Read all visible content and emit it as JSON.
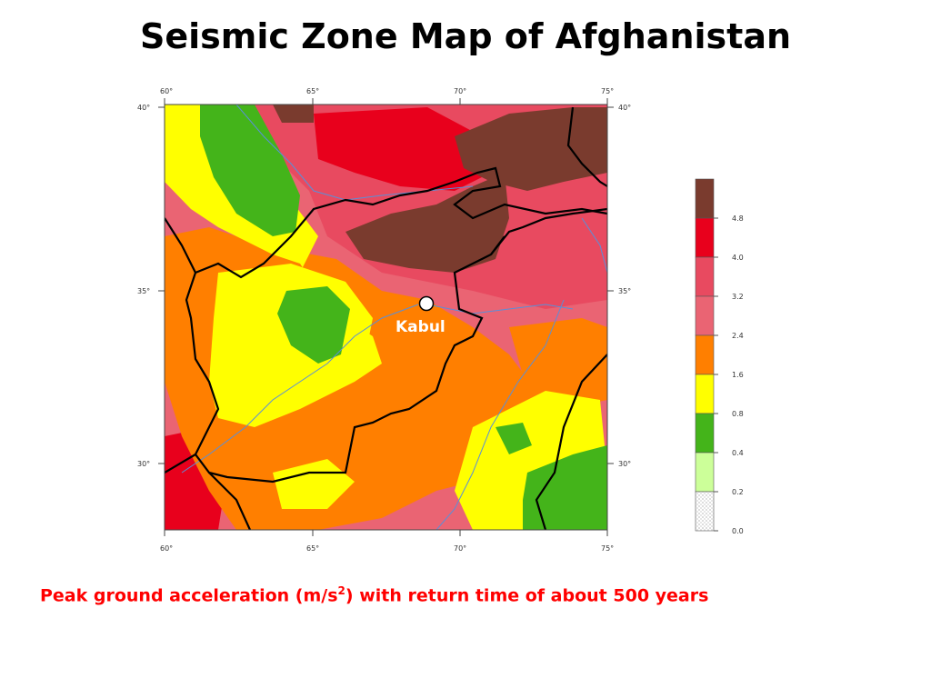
{
  "title": "Seismic Zone Map of Afghanistan",
  "caption": {
    "prefix": "Peak ground acceleration (m/s",
    "superscript": "2",
    "suffix": ") with return time of about 500 years"
  },
  "map": {
    "city_label": "Kabul",
    "lon_ticks": [
      "60°",
      "65°",
      "70°",
      "75°"
    ],
    "lat_ticks": [
      "40°",
      "35°",
      "30°"
    ]
  },
  "legend": {
    "ticks": [
      "4.8",
      "4.0",
      "3.2",
      "2.4",
      "1.6",
      "0.8",
      "0.4",
      "0.2",
      "0.0"
    ],
    "colors": [
      "#7a3b2e",
      "#e8001c",
      "#e84a60",
      "#ea6473",
      "#ff7f00",
      "#ffff00",
      "#44b41a",
      "#ccff99",
      "#ffffff"
    ]
  },
  "colors": {
    "brown": "#7a3b2e",
    "dark_red": "#e8001c",
    "red": "#e84a60",
    "pink": "#ea6473",
    "orange": "#ff7f00",
    "yellow": "#ffff00",
    "green": "#44b41a",
    "light_green": "#ccff99",
    "river": "#5a8fd8"
  }
}
